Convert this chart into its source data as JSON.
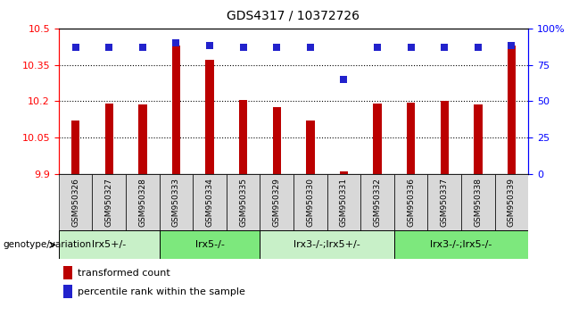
{
  "title": "GDS4317 / 10372726",
  "samples": [
    "GSM950326",
    "GSM950327",
    "GSM950328",
    "GSM950333",
    "GSM950334",
    "GSM950335",
    "GSM950329",
    "GSM950330",
    "GSM950331",
    "GSM950332",
    "GSM950336",
    "GSM950337",
    "GSM950338",
    "GSM950339"
  ],
  "bar_values": [
    10.12,
    10.19,
    10.185,
    10.43,
    10.37,
    10.205,
    10.175,
    10.12,
    9.91,
    10.19,
    10.195,
    10.2,
    10.185,
    10.43
  ],
  "dot_values": [
    87,
    87,
    87,
    90,
    88,
    87,
    87,
    87,
    65,
    87,
    87,
    87,
    87,
    88
  ],
  "ylim_left": [
    9.9,
    10.5
  ],
  "ylim_right": [
    0,
    100
  ],
  "yticks_left": [
    9.9,
    10.05,
    10.2,
    10.35,
    10.5
  ],
  "ytick_labels_left": [
    "9.9",
    "10.05",
    "10.2",
    "10.35",
    "10.5"
  ],
  "yticks_right": [
    0,
    25,
    50,
    75,
    100
  ],
  "ytick_labels_right": [
    "0",
    "25",
    "50",
    "75",
    "100%"
  ],
  "hlines": [
    10.05,
    10.2,
    10.35
  ],
  "bar_color": "#BB0000",
  "dot_color": "#2222CC",
  "groups": [
    {
      "label": "lrx5+/-",
      "start": 0,
      "end": 2
    },
    {
      "label": "lrx5-/-",
      "start": 3,
      "end": 5
    },
    {
      "label": "lrx3-/-;lrx5+/-",
      "start": 6,
      "end": 9
    },
    {
      "label": "lrx3-/-;lrx5-/-",
      "start": 10,
      "end": 13
    }
  ],
  "group_colors": [
    "#c8f0c8",
    "#7de87d",
    "#c8f0c8",
    "#7de87d"
  ],
  "legend_bar_label": "transformed count",
  "legend_dot_label": "percentile rank within the sample",
  "genotype_label": "genotype/variation",
  "bar_width": 0.25,
  "dot_size": 30,
  "tick_box_color": "#d8d8d8"
}
